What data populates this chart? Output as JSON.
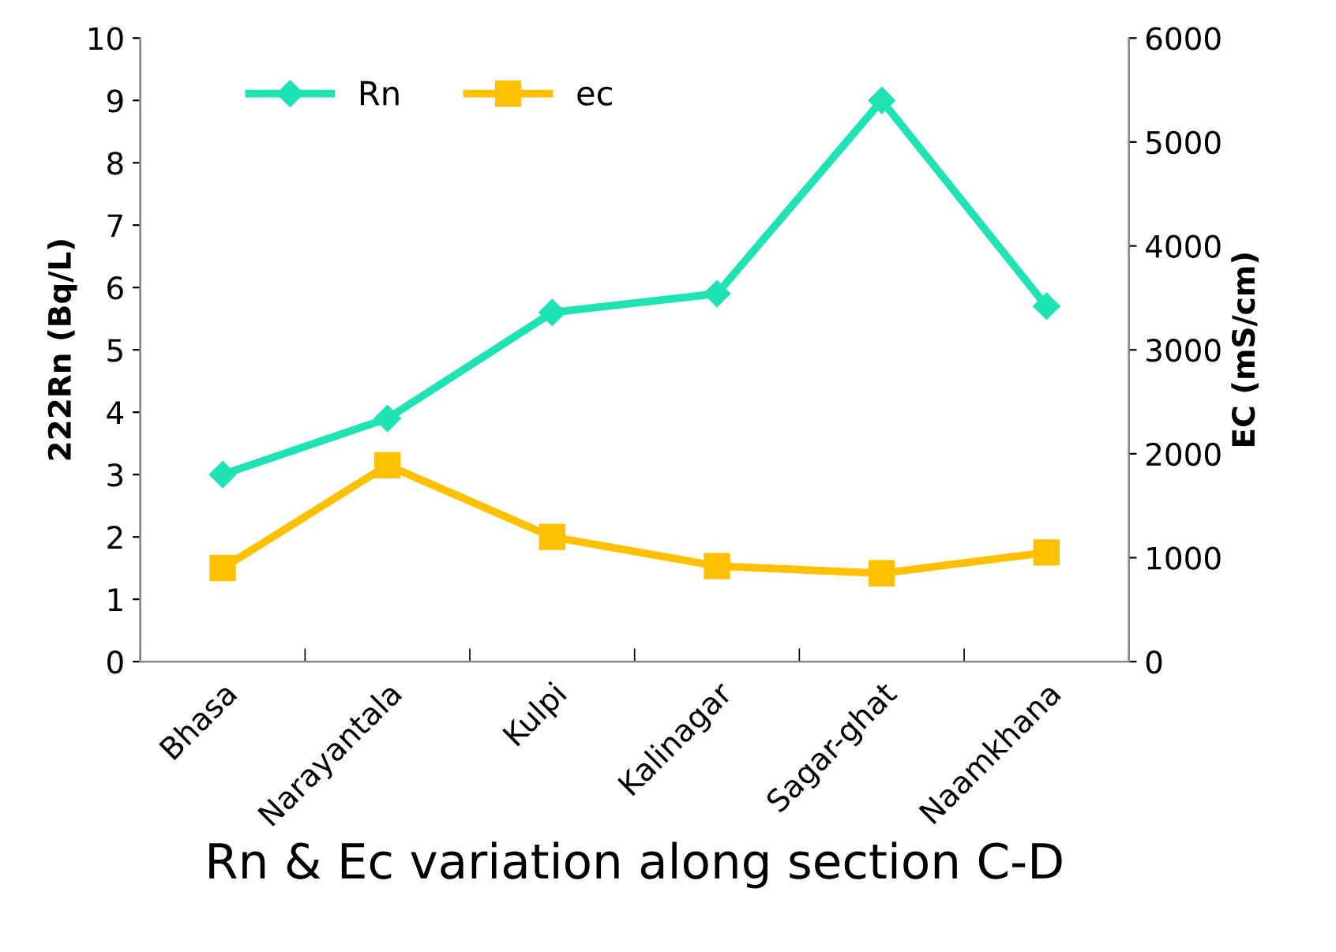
{
  "chart_data": {
    "type": "line",
    "categories": [
      "Bhasa",
      "Narayantala",
      "Kulpi",
      "Kalinagar",
      "Sagar-ghat",
      "Naamkhana"
    ],
    "series": [
      {
        "name": "Rn",
        "color": "#1fe3b4",
        "marker": "diamond",
        "values": [
          3.0,
          3.9,
          5.6,
          5.9,
          9.0,
          5.7
        ]
      },
      {
        "name": "ec",
        "color": "#ffc000",
        "marker": "square",
        "axis": "y2",
        "values": [
          900,
          1890,
          1200,
          920,
          850,
          1050
        ]
      }
    ],
    "ylabel": "222Rn (Bq/L)",
    "y2label": "EC (mS/cm)",
    "xlabel": "Rn & Ec variation along section C-D",
    "ylim": [
      0,
      10
    ],
    "yticks": [
      0,
      1,
      2,
      3,
      4,
      5,
      6,
      7,
      8,
      9,
      10
    ],
    "y2lim": [
      0,
      6000
    ],
    "y2ticks": [
      0,
      1000,
      2000,
      3000,
      4000,
      5000,
      6000
    ],
    "legend": "top left",
    "grid": false,
    "line_style": "solid"
  }
}
